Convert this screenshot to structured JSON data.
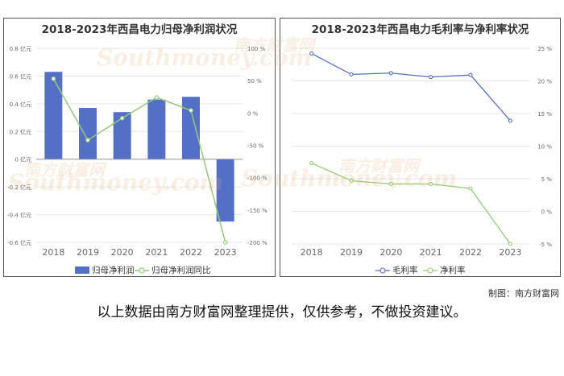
{
  "footer": {
    "credit": "制图：南方财富网",
    "disclaimer": "以上数据由南方财富网整理提供，仅供参考，不做投资建议。"
  },
  "watermark": {
    "cn": "南方财富网",
    "en": "Southmoney.com"
  },
  "colors": {
    "bar": "#5470c6",
    "line_green": "#91cc75",
    "line_blue": "#5470c6"
  },
  "chart_data": [
    {
      "type": "bar",
      "title": "2018-2023年西昌电力归母净利润状况",
      "categories": [
        "2018",
        "2019",
        "2020",
        "2021",
        "2022",
        "2023"
      ],
      "y_ticks_left": [
        "0.8 亿元",
        "0.6 亿元",
        "0.4 亿元",
        "0.2 亿元",
        "0 亿元",
        "-0.2 亿元",
        "-0.4 亿元",
        "-0.6 亿元"
      ],
      "y_ticks_right": [
        "100 %",
        "50 %",
        "0 %",
        "-50 %",
        "-100 %",
        "-150 %",
        "-200 %"
      ],
      "ylim_left": [
        -0.6,
        0.8
      ],
      "ylim_right": [
        -200,
        100
      ],
      "legend": "bottom",
      "series": [
        {
          "name": "归母净利润",
          "type": "bar",
          "axis": "left",
          "values": [
            0.63,
            0.37,
            0.34,
            0.43,
            0.45,
            -0.45
          ]
        },
        {
          "name": "归母净利润同比",
          "type": "line",
          "axis": "right",
          "values": [
            53,
            -42,
            -8,
            24,
            4,
            -200
          ]
        }
      ]
    },
    {
      "type": "line",
      "title": "2018-2023年西昌电力毛利率与净利率状况",
      "categories": [
        "2018",
        "2019",
        "2020",
        "2021",
        "2022",
        "2023"
      ],
      "y_ticks": [
        "25 %",
        "20 %",
        "15 %",
        "10 %",
        "5 %",
        "0 %",
        "-5 %"
      ],
      "ylim": [
        -5,
        25
      ],
      "legend": "bottom",
      "series": [
        {
          "name": "毛利率",
          "values": [
            24.2,
            21.0,
            21.2,
            20.6,
            20.9,
            13.9
          ]
        },
        {
          "name": "净利率",
          "values": [
            7.4,
            4.7,
            4.2,
            4.2,
            3.5,
            -5.0
          ]
        }
      ]
    }
  ]
}
